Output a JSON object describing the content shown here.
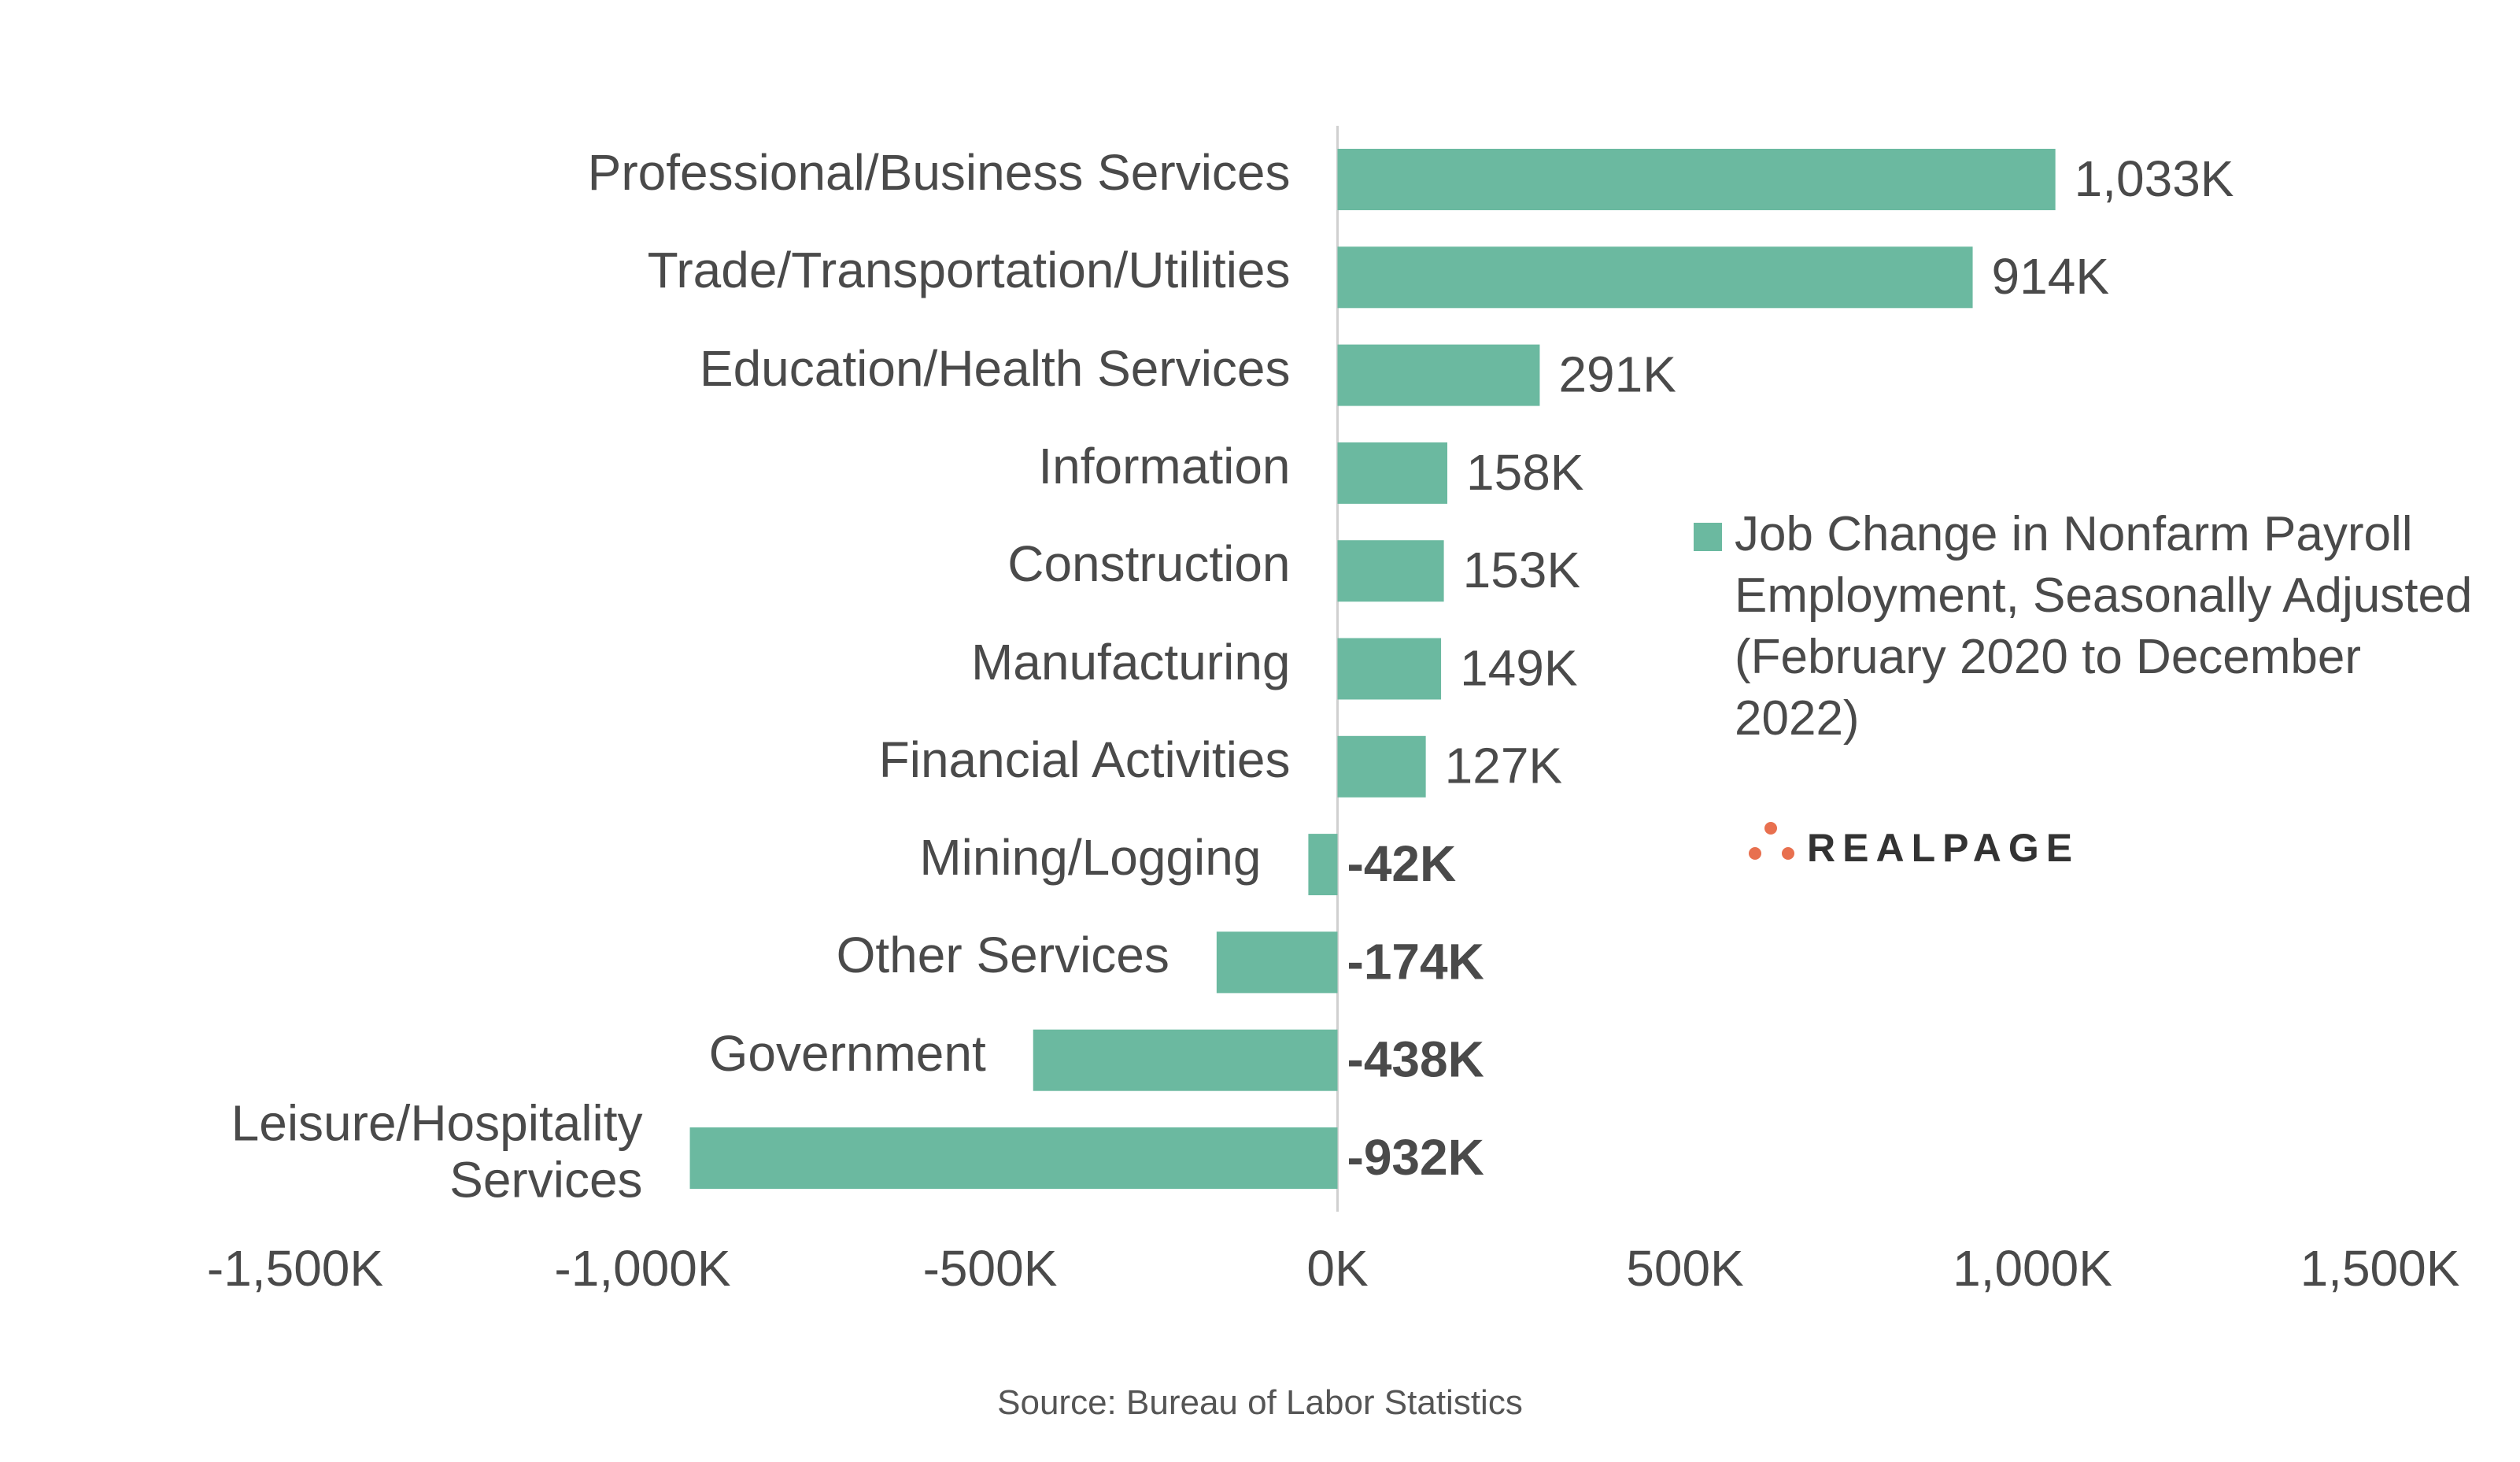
{
  "chart_data": {
    "type": "bar",
    "orientation": "horizontal",
    "categories": [
      "Professional/Business Services",
      "Trade/Transportation/Utilities",
      "Education/Health Services",
      "Information",
      "Construction",
      "Manufacturing",
      "Financial Activities",
      "Mining/Logging",
      "Other Services",
      "Government",
      "Leisure/Hospitality Services"
    ],
    "series": [
      {
        "name": "Job Change in Nonfarm Payroll Employment, Seasonally Adjusted (February 2020 to December 2022)",
        "color": "#6bb9a0",
        "values": [
          1033,
          914,
          291,
          158,
          153,
          149,
          127,
          -42,
          -174,
          -438,
          -932
        ],
        "value_labels": [
          "1,033K",
          "914K",
          "291K",
          "158K",
          "153K",
          "149K",
          "127K",
          "-42K",
          "-174K",
          "-438K",
          "-932K"
        ]
      }
    ],
    "xlim": [
      -1500,
      1500
    ],
    "xticks": [
      {
        "value": -1500,
        "label": "-1,500K"
      },
      {
        "value": -1000,
        "label": "-1,000K"
      },
      {
        "value": -500,
        "label": "-500K"
      },
      {
        "value": 0,
        "label": "0K"
      },
      {
        "value": 500,
        "label": "500K"
      },
      {
        "value": 1000,
        "label": "1,000K"
      },
      {
        "value": 1500,
        "label": "1,500K"
      }
    ],
    "legend": "right",
    "source": "Source: Bureau of Labor Statistics",
    "logo": "REALPAGE"
  }
}
